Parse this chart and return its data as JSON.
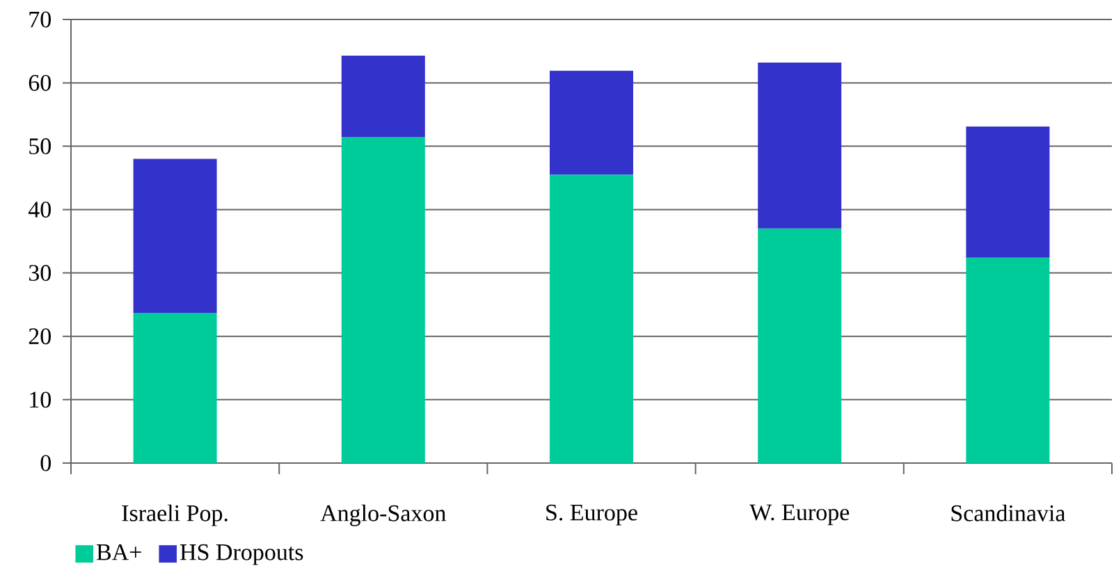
{
  "chart_data": {
    "type": "bar",
    "stacked": true,
    "categories": [
      "Israeli Pop.",
      "Anglo-Saxon",
      "S. Europe",
      "W. Europe",
      "Scandinavia"
    ],
    "series": [
      {
        "name": "BA+",
        "color": "#00cc99",
        "values": [
          23.7,
          51.4,
          45.5,
          37.0,
          32.4
        ]
      },
      {
        "name": "HS Dropouts",
        "color": "#3333cc",
        "values": [
          24.3,
          12.9,
          16.4,
          26.2,
          20.7
        ]
      }
    ],
    "ylim": [
      0,
      70
    ],
    "yticks": [
      0,
      10,
      20,
      30,
      40,
      50,
      60,
      70
    ],
    "grid": "y",
    "legend": "bottom left"
  }
}
